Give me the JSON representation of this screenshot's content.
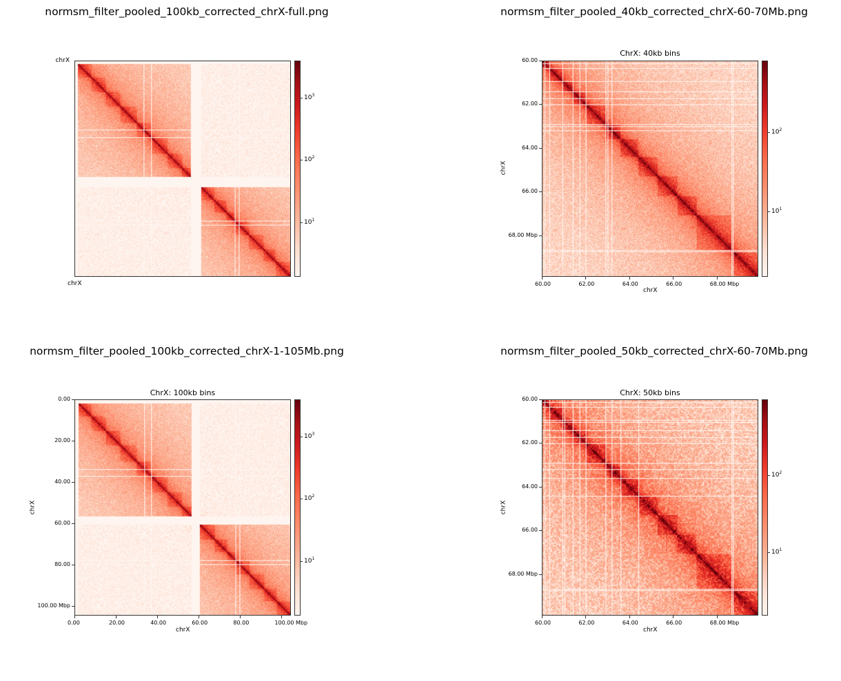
{
  "chart_data": [
    {
      "type": "heatmap",
      "file_title": "normsm_filter_pooled_100kb_corrected_chrX-full.png",
      "title": "",
      "xlabel": "chrX",
      "ylabel": "chrX",
      "label_style": "corner",
      "extent_mbp": [
        0,
        105
      ],
      "bin_kb": 100,
      "xticks": [],
      "yticks": [],
      "colorbar": {
        "scale": "log",
        "range": [
          1.35,
          3900
        ],
        "ticks": [
          {
            "base": "10",
            "exp": "1",
            "value": 10
          },
          {
            "base": "10",
            "exp": "2",
            "value": 100
          },
          {
            "base": "10",
            "exp": "3",
            "value": 1000
          }
        ]
      },
      "blocks_mbp": [
        [
          1.5,
          56.5
        ],
        [
          61.5,
          105
        ]
      ],
      "tads_mbp": [
        [
          1.5,
          8
        ],
        [
          8,
          15
        ],
        [
          15,
          22
        ],
        [
          22,
          30
        ],
        [
          30,
          37
        ],
        [
          37,
          45
        ],
        [
          45,
          52
        ],
        [
          52,
          56.5
        ],
        [
          61.5,
          68
        ],
        [
          68,
          74
        ],
        [
          74,
          78
        ],
        [
          78,
          85
        ],
        [
          85,
          92
        ],
        [
          92,
          98
        ],
        [
          98,
          105
        ]
      ],
      "gaps_mbp": [
        33.5,
        37,
        56.5,
        57.5,
        58.5,
        59.5,
        60.5,
        78,
        80
      ]
    },
    {
      "type": "heatmap",
      "file_title": "normsm_filter_pooled_40kb_corrected_chrX-60-70Mb.png",
      "title": "ChrX: 40kb bins",
      "xlabel": "chrX",
      "ylabel": "chrX",
      "label_style": "axes",
      "extent_mbp": [
        60,
        69.9
      ],
      "bin_kb": 40,
      "xticks": [
        {
          "value": 60,
          "label": "60.00"
        },
        {
          "value": 62,
          "label": "62.00"
        },
        {
          "value": 64,
          "label": "64.00"
        },
        {
          "value": 66,
          "label": "66.00"
        },
        {
          "value": 68,
          "label": "68.00  Mbp"
        }
      ],
      "yticks": [
        {
          "value": 60,
          "label": "60.00"
        },
        {
          "value": 62,
          "label": "62.00"
        },
        {
          "value": 64,
          "label": "64.00"
        },
        {
          "value": 66,
          "label": "66.00"
        },
        {
          "value": 68,
          "label": "68.00  Mbp"
        }
      ],
      "colorbar": {
        "scale": "log",
        "range": [
          1.5,
          790
        ],
        "ticks": [
          {
            "base": "10",
            "exp": "1",
            "value": 10
          },
          {
            "base": "10",
            "exp": "2",
            "value": 100
          }
        ]
      },
      "blocks_mbp": [
        [
          60,
          69.9
        ]
      ],
      "tads_mbp": [
        [
          60,
          60.3
        ],
        [
          60.3,
          60.9
        ],
        [
          60.9,
          61.4
        ],
        [
          61.4,
          62
        ],
        [
          62,
          62.9
        ],
        [
          62.9,
          63.6
        ],
        [
          63.6,
          64.4
        ],
        [
          64.4,
          65.3
        ],
        [
          65.3,
          66.2
        ],
        [
          66.2,
          67.1
        ],
        [
          67.1,
          68.7
        ],
        [
          68.8,
          69.9
        ]
      ],
      "gaps_mbp": [
        60.1,
        60.3,
        60.9,
        61.4,
        61.7,
        62.0,
        62.9,
        63.0,
        63.2,
        68.7,
        68.75
      ]
    },
    {
      "type": "heatmap",
      "file_title": "normsm_filter_pooled_100kb_corrected_chrX-1-105Mb.png",
      "title": "ChrX: 100kb bins",
      "xlabel": "chrX",
      "ylabel": "chrX",
      "label_style": "axes",
      "extent_mbp": [
        0,
        104.5
      ],
      "bin_kb": 100,
      "xticks": [
        {
          "value": 0,
          "label": "0.00"
        },
        {
          "value": 20,
          "label": "20.00"
        },
        {
          "value": 40,
          "label": "40.00"
        },
        {
          "value": 60,
          "label": "60.00"
        },
        {
          "value": 80,
          "label": "80.00"
        },
        {
          "value": 100,
          "label": "100.00  Mbp"
        }
      ],
      "yticks": [
        {
          "value": 0,
          "label": "0.00"
        },
        {
          "value": 20,
          "label": "20.00"
        },
        {
          "value": 40,
          "label": "40.00"
        },
        {
          "value": 60,
          "label": "60.00"
        },
        {
          "value": 80,
          "label": "80.00"
        },
        {
          "value": 100,
          "label": "100.00  Mbp"
        }
      ],
      "colorbar": {
        "scale": "log",
        "range": [
          1.35,
          3900
        ],
        "ticks": [
          {
            "base": "10",
            "exp": "1",
            "value": 10
          },
          {
            "base": "10",
            "exp": "2",
            "value": 100
          },
          {
            "base": "10",
            "exp": "3",
            "value": 1000
          }
        ]
      },
      "blocks_mbp": [
        [
          1.5,
          56.5
        ],
        [
          60.5,
          104.5
        ]
      ],
      "tads_mbp": [
        [
          1.5,
          8
        ],
        [
          8,
          15
        ],
        [
          15,
          22
        ],
        [
          22,
          30
        ],
        [
          30,
          37
        ],
        [
          37,
          45
        ],
        [
          45,
          52
        ],
        [
          52,
          56.5
        ],
        [
          60.5,
          68
        ],
        [
          68,
          74
        ],
        [
          74,
          78
        ],
        [
          78,
          85
        ],
        [
          85,
          92
        ],
        [
          92,
          98
        ],
        [
          98,
          104.5
        ]
      ],
      "gaps_mbp": [
        33.5,
        37,
        56.5,
        57.5,
        58.5,
        59.5,
        78,
        80
      ]
    },
    {
      "type": "heatmap",
      "file_title": "normsm_filter_pooled_50kb_corrected_chrX-60-70Mb.png",
      "title": "ChrX: 50kb bins",
      "xlabel": "chrX",
      "ylabel": "chrX",
      "label_style": "axes",
      "extent_mbp": [
        60,
        69.9
      ],
      "bin_kb": 50,
      "xticks": [
        {
          "value": 60,
          "label": "60.00"
        },
        {
          "value": 62,
          "label": "62.00"
        },
        {
          "value": 64,
          "label": "64.00"
        },
        {
          "value": 66,
          "label": "66.00"
        },
        {
          "value": 68,
          "label": "68.00  Mbp"
        }
      ],
      "yticks": [
        {
          "value": 60,
          "label": "60.00"
        },
        {
          "value": 62,
          "label": "62.00"
        },
        {
          "value": 64,
          "label": "64.00"
        },
        {
          "value": 66,
          "label": "66.00"
        },
        {
          "value": 68,
          "label": "68.00  Mbp"
        }
      ],
      "colorbar": {
        "scale": "log",
        "range": [
          1.5,
          950
        ],
        "ticks": [
          {
            "base": "10",
            "exp": "1",
            "value": 10
          },
          {
            "base": "10",
            "exp": "2",
            "value": 100
          }
        ]
      },
      "blocks_mbp": [
        [
          60,
          69.9
        ]
      ],
      "tads_mbp": [
        [
          60,
          60.3
        ],
        [
          60.3,
          60.9
        ],
        [
          60.9,
          61.4
        ],
        [
          61.4,
          62
        ],
        [
          62,
          62.9
        ],
        [
          62.9,
          63.6
        ],
        [
          63.6,
          64.4
        ],
        [
          64.4,
          65.3
        ],
        [
          65.3,
          66.2
        ],
        [
          66.2,
          67.1
        ],
        [
          67.1,
          68.7
        ],
        [
          68.8,
          69.9
        ]
      ],
      "gaps_mbp": [
        60.1,
        60.3,
        60.9,
        61.0,
        61.4,
        61.7,
        62.0,
        62.9,
        63.2,
        63.6,
        64.4,
        68.7,
        68.75
      ]
    }
  ]
}
